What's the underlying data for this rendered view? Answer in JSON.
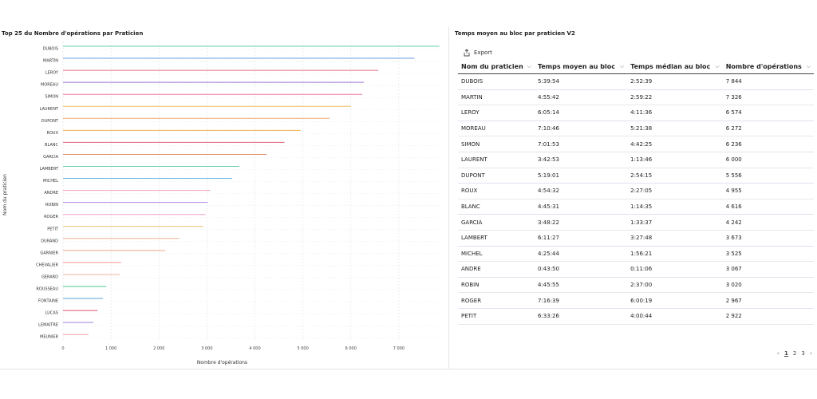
{
  "chart_panel": {
    "title": "Top 25 du Nombre d'opérations par Praticien"
  },
  "chart_data": {
    "type": "bar",
    "orientation": "horizontal",
    "xlabel": "Nombre d'opérations",
    "ylabel": "Nom du praticien",
    "xlim": [
      0,
      7900
    ],
    "x_ticks": [
      0,
      1000,
      2000,
      3000,
      4000,
      5000,
      6000,
      7000
    ],
    "x_tick_labels": [
      "0",
      "1 000",
      "2 000",
      "3 000",
      "4 000",
      "5 000",
      "6 000",
      "7 000"
    ],
    "grid": true,
    "categories": [
      "DUBOIS",
      "MARTIN",
      "LEROY",
      "MOREAU",
      "SIMON",
      "LAURENT",
      "DUPONT",
      "ROUX",
      "BLANC",
      "GARCIA",
      "LAMBERT",
      "MICHEL",
      "ANDRE",
      "ROBIN",
      "ROGER",
      "PETIT",
      "DURAND",
      "GARNIER",
      "CHEVALIER",
      "GERARD",
      "ROUSSEAU",
      "FONTAINE",
      "LUCAS",
      "LEMAITRE",
      "MEUNIER"
    ],
    "values": [
      7844,
      7326,
      6574,
      6272,
      6236,
      6000,
      5556,
      4955,
      4616,
      4242,
      3673,
      3525,
      3067,
      3020,
      2967,
      2922,
      2420,
      2130,
      1210,
      1180,
      900,
      830,
      720,
      630,
      530
    ],
    "colors": [
      "#5fd0a0",
      "#6a9fe0",
      "#e0708a",
      "#a07ad8",
      "#f07aa8",
      "#f0c060",
      "#f0a870",
      "#f0b050",
      "#e0607a",
      "#e09070",
      "#70d0b0",
      "#70b8e0",
      "#f0a0b8",
      "#b08ae0",
      "#f0a0c8",
      "#f0c070",
      "#f0b090",
      "#f0a890",
      "#f09090",
      "#f0b0a0",
      "#50c090",
      "#5aa0d8",
      "#e05070",
      "#a080e0",
      "#f09aa8"
    ]
  },
  "table_panel": {
    "title": "Temps moyen au bloc par praticien V2",
    "export_label": "Export",
    "columns": [
      "Nom du praticien",
      "Temps moyen au bloc",
      "Temps médian au bloc",
      "Nombre d'opérations"
    ],
    "rows": [
      [
        "DUBOIS",
        "5:39:54",
        "2:52:39",
        "7 844"
      ],
      [
        "MARTIN",
        "4:55:42",
        "2:59:22",
        "7 326"
      ],
      [
        "LEROY",
        "6:05:14",
        "4:11:36",
        "6 574"
      ],
      [
        "MOREAU",
        "7:10:46",
        "5:21:38",
        "6 272"
      ],
      [
        "SIMON",
        "7:01:53",
        "4:42:25",
        "6 236"
      ],
      [
        "LAURENT",
        "3:42:53",
        "1:13:46",
        "6 000"
      ],
      [
        "DUPONT",
        "5:19:01",
        "2:54:15",
        "5 556"
      ],
      [
        "ROUX",
        "4:54:32",
        "2:27:05",
        "4 955"
      ],
      [
        "BLANC",
        "4:45:31",
        "1:14:35",
        "4 616"
      ],
      [
        "GARCIA",
        "3:48:22",
        "1:33:37",
        "4 242"
      ],
      [
        "LAMBERT",
        "6:11:27",
        "3:27:48",
        "3 673"
      ],
      [
        "MICHEL",
        "4:25:44",
        "1:56:21",
        "3 525"
      ],
      [
        "ANDRE",
        "0:43:50",
        "0:11:06",
        "3 067"
      ],
      [
        "ROBIN",
        "4:45:55",
        "2:37:00",
        "3 020"
      ],
      [
        "ROGER",
        "7:16:39",
        "6:00:19",
        "2 967"
      ],
      [
        "PETIT",
        "6:33:26",
        "4:00:44",
        "2 922"
      ]
    ],
    "pagination": {
      "prev": "‹",
      "pages": [
        "1",
        "2",
        "3"
      ],
      "current": "1",
      "next": "›"
    }
  }
}
